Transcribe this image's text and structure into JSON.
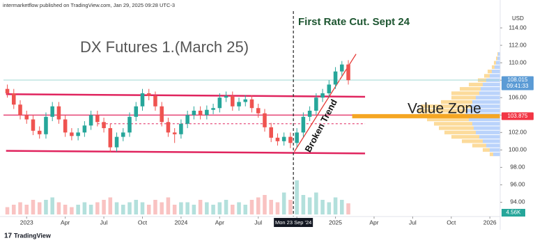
{
  "chart_data": {
    "type": "candlestick",
    "title": "DX Futures 1.(March 25)",
    "source": "intermarketflow published on TradingView.com, Jan 29, 2025 09:28 UTC-3",
    "brand": "TradingView",
    "currency": "USD",
    "rate_cut_label": "First Rate Cut. Sept 24",
    "trend_label": "Broken Trend",
    "zone_label": "Value Zone",
    "up_color": "#26a69a",
    "down_color": "#ef5350",
    "grid": false,
    "x": [
      -1.5,
      -1,
      -0.5,
      0,
      0.5,
      1,
      1.5,
      2,
      2.5,
      3,
      3.5,
      4,
      4.5,
      5,
      5.5,
      6,
      6.5,
      7,
      7.5,
      8,
      8.5,
      9,
      9.5,
      10,
      10.5,
      11,
      11.5,
      12,
      12.5,
      13,
      13.5,
      14,
      14.5,
      15,
      15.5,
      16,
      16.5,
      17,
      17.5,
      18,
      18.5,
      19,
      19.5,
      20,
      20.5,
      21,
      21.5,
      22,
      22.5,
      23,
      23.5,
      24,
      24.5,
      25
    ],
    "open": [
      107.0,
      106.5,
      105.2,
      104.0,
      103.5,
      102.2,
      101.8,
      103.8,
      105.0,
      103.5,
      102.0,
      101.6,
      102.0,
      102.8,
      104.0,
      103.2,
      102.5,
      100.3,
      101.5,
      102.0,
      103.8,
      105.0,
      106.5,
      106.2,
      105.0,
      103.2,
      102.0,
      101.8,
      103.0,
      104.0,
      104.5,
      104.0,
      104.6,
      104.8,
      106.0,
      106.2,
      105.0,
      105.5,
      105.8,
      104.8,
      104.2,
      102.6,
      101.4,
      101.0,
      101.5,
      100.8,
      102.0,
      103.8,
      104.5,
      106.0,
      106.5,
      107.5,
      109.0,
      109.8
    ],
    "high": [
      107.5,
      107.0,
      105.7,
      104.5,
      104.0,
      102.7,
      104.3,
      105.5,
      105.5,
      104.0,
      102.5,
      102.5,
      103.3,
      104.5,
      104.5,
      103.7,
      103.0,
      102.0,
      102.5,
      104.3,
      105.5,
      107.0,
      107.0,
      106.7,
      105.5,
      103.7,
      102.5,
      103.5,
      104.5,
      105.0,
      105.0,
      105.1,
      105.3,
      106.5,
      106.7,
      106.7,
      106.0,
      106.3,
      106.3,
      105.3,
      104.7,
      103.1,
      101.9,
      102.0,
      102.0,
      102.5,
      104.3,
      105.0,
      106.5,
      107.0,
      108.0,
      109.5,
      110.2,
      110.3
    ],
    "low": [
      106.0,
      104.7,
      103.5,
      103.0,
      101.7,
      101.3,
      101.3,
      103.3,
      103.0,
      101.5,
      101.1,
      101.1,
      101.5,
      102.3,
      102.7,
      102.0,
      99.7,
      99.8,
      101.0,
      101.5,
      103.3,
      104.5,
      105.7,
      104.5,
      102.7,
      101.5,
      100.8,
      101.3,
      102.5,
      103.5,
      103.5,
      103.5,
      104.1,
      104.3,
      105.5,
      104.5,
      104.5,
      105.0,
      104.3,
      103.7,
      102.1,
      100.9,
      100.5,
      100.5,
      100.2,
      100.3,
      101.5,
      103.3,
      104.0,
      105.5,
      106.0,
      107.0,
      108.5,
      107.5
    ],
    "close": [
      106.5,
      105.2,
      104.0,
      103.5,
      102.2,
      101.8,
      103.8,
      105.0,
      103.5,
      102.0,
      101.6,
      102.0,
      102.8,
      104.0,
      103.2,
      102.5,
      100.3,
      101.5,
      102.0,
      103.8,
      105.0,
      106.5,
      106.2,
      105.0,
      103.2,
      102.0,
      101.8,
      103.0,
      104.0,
      104.5,
      104.0,
      104.6,
      104.8,
      106.0,
      106.2,
      105.0,
      105.5,
      105.8,
      104.8,
      104.2,
      102.6,
      101.4,
      101.0,
      101.5,
      100.8,
      102.0,
      103.8,
      104.5,
      106.0,
      106.5,
      107.5,
      109.0,
      109.8,
      108.0
    ],
    "volume": [
      3,
      4,
      5,
      4,
      6,
      5,
      6,
      7,
      5,
      4,
      3,
      4,
      5,
      4,
      5,
      6,
      7,
      5,
      4,
      5,
      6,
      5,
      4,
      6,
      5,
      7,
      4,
      5,
      5,
      4,
      6,
      5,
      4,
      5,
      6,
      4,
      5,
      4,
      6,
      7,
      8,
      6,
      5,
      9,
      6,
      14,
      8,
      7,
      9,
      6,
      5,
      7,
      6,
      4.56
    ],
    "volume_label": "4.56K",
    "xlim": [
      -1.8,
      36.8
    ],
    "ylim": [
      92.2,
      116.4
    ],
    "xticks": [
      {
        "value": 0,
        "label": "2023"
      },
      {
        "value": 3,
        "label": "Apr"
      },
      {
        "value": 6,
        "label": "Jul"
      },
      {
        "value": 9,
        "label": "Oct"
      },
      {
        "value": 12,
        "label": "2024"
      },
      {
        "value": 15,
        "label": "Apr"
      },
      {
        "value": 18,
        "label": "Jul"
      },
      {
        "value": 21,
        "label": "Oct"
      },
      {
        "value": 24,
        "label": "2025"
      },
      {
        "value": 27,
        "label": "Apr"
      },
      {
        "value": 30,
        "label": "Jul"
      },
      {
        "value": 33,
        "label": "Oct"
      },
      {
        "value": 36,
        "label": "2026"
      }
    ],
    "yticks": [
      {
        "value": 94,
        "label": "94.00"
      },
      {
        "value": 96,
        "label": "96.00"
      },
      {
        "value": 98,
        "label": "98.00"
      },
      {
        "value": 100,
        "label": "100.00"
      },
      {
        "value": 102,
        "label": "102.00"
      },
      {
        "value": 104,
        "label": "104.00"
      },
      {
        "value": 106,
        "label": "106.00"
      },
      {
        "value": 108,
        "label": "108.00"
      },
      {
        "value": 110,
        "label": "110.00"
      },
      {
        "value": 112,
        "label": "112.00"
      },
      {
        "value": 114,
        "label": "114.00"
      }
    ],
    "crosshair": {
      "x": 20.73,
      "label": "Mon 23 Sep '24"
    },
    "price_labels": [
      {
        "value": 108.015,
        "time": "09:41:33",
        "color": "#5b9bd5"
      },
      {
        "value": 103.875,
        "color": "#f23645"
      }
    ],
    "profile": {
      "prices": [
        99.5,
        100,
        100.5,
        101,
        101.5,
        102,
        102.5,
        103,
        103.5,
        104,
        104.5,
        105,
        105.5,
        106,
        106.5,
        107,
        107.5,
        108,
        108.5,
        109,
        109.5,
        110,
        110.5,
        111
      ],
      "series": [
        {
          "color": "#aecbfa",
          "values": [
            10,
            15,
            20,
            25,
            30,
            35,
            38,
            40,
            45,
            50,
            48,
            42,
            40,
            35,
            30,
            28,
            25,
            20,
            15,
            12,
            8,
            6,
            4,
            3
          ]
        },
        {
          "color": "#fbd58a",
          "values": [
            5,
            10,
            20,
            30,
            40,
            45,
            50,
            55,
            60,
            65,
            70,
            72,
            45,
            35,
            40,
            30,
            20,
            12,
            8,
            6,
            4,
            3,
            2,
            1
          ]
        }
      ]
    },
    "lines": [
      {
        "points": [
          [
            -1.6,
            106.4
          ],
          [
            26.3,
            106.1
          ]
        ],
        "color": "#e0245e",
        "width": 2.5
      },
      {
        "points": [
          [
            -1.6,
            99.9
          ],
          [
            26.3,
            99.6
          ]
        ],
        "color": "#e0245e",
        "width": 2.5
      },
      {
        "points": [
          [
            -1.8,
            104.0
          ],
          [
            26.3,
            104.0
          ]
        ],
        "color": "#e0245e",
        "width": 1.2
      },
      {
        "points": [
          [
            5.5,
            103.0
          ],
          [
            26.3,
            103.0
          ]
        ],
        "color": "#e0245e",
        "width": 1,
        "dash": true
      },
      {
        "points": [
          [
            20.8,
            99.8
          ],
          [
            25.6,
            111.0
          ]
        ],
        "color": "#e53935",
        "width": 1.3
      },
      {
        "points": [
          [
            -1.8,
            108.015
          ],
          [
            36.8,
            108.015
          ]
        ],
        "color": "#9fd7d3",
        "width": 1
      },
      {
        "points": [
          [
            25.3,
            103.875
          ],
          [
            36.8,
            103.875
          ]
        ],
        "color": "#f5a623",
        "width": 6
      }
    ]
  }
}
